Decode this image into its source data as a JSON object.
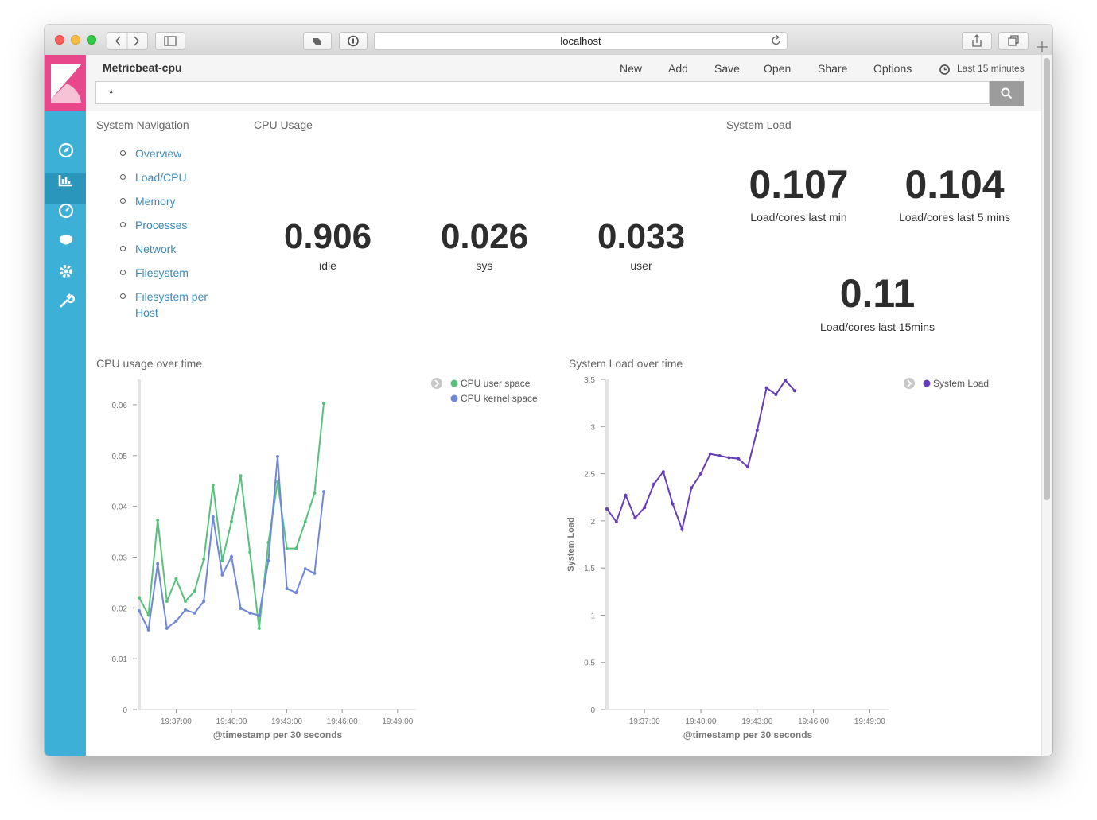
{
  "browser": {
    "url": "localhost"
  },
  "app": {
    "title": "Metricbeat-cpu",
    "menu": [
      "New",
      "Add",
      "Save",
      "Open",
      "Share",
      "Options"
    ],
    "time_range": "Last 15 minutes",
    "query": "*"
  },
  "navigation": {
    "title": "System Navigation",
    "links": [
      "Overview",
      "Load/CPU",
      "Memory",
      "Processes",
      "Network",
      "Filesystem",
      "Filesystem per Host"
    ]
  },
  "cpu_usage": {
    "title": "CPU Usage",
    "metrics": [
      {
        "value": 0.906,
        "label": "idle"
      },
      {
        "value": 0.026,
        "label": "sys"
      },
      {
        "value": 0.033,
        "label": "user"
      }
    ]
  },
  "system_load": {
    "title": "System Load",
    "metrics": [
      {
        "value": 0.107,
        "label": "Load/cores last min"
      },
      {
        "value": 0.104,
        "label": "Load/cores last 5 mins"
      },
      {
        "value": 0.11,
        "label": "Load/cores last 15mins"
      }
    ]
  },
  "chart_data": [
    {
      "type": "line",
      "title": "CPU usage over time",
      "xlabel": "@timestamp per 30 seconds",
      "legend": "right",
      "x": [
        "19:35:00",
        "19:35:30",
        "19:36:00",
        "19:36:30",
        "19:37:00",
        "19:37:30",
        "19:38:00",
        "19:38:30",
        "19:39:00",
        "19:39:30",
        "19:40:00",
        "19:40:30",
        "19:41:00",
        "19:41:30",
        "19:42:00",
        "19:42:30",
        "19:43:00",
        "19:43:30",
        "19:44:00",
        "19:44:30",
        "19:45:00"
      ],
      "series": [
        {
          "name": "CPU user space",
          "color": "#57c17b",
          "values": [
            0.022,
            0.0186,
            0.0373,
            0.0213,
            0.0257,
            0.0213,
            0.0233,
            0.0296,
            0.0442,
            0.0293,
            0.037,
            0.046,
            0.031,
            0.016,
            0.0329,
            0.0448,
            0.0317,
            0.0317,
            0.037,
            0.0426,
            0.0603
          ]
        },
        {
          "name": "CPU kernel space",
          "color": "#6f87d8",
          "values": [
            0.0194,
            0.0157,
            0.0287,
            0.016,
            0.0174,
            0.0196,
            0.019,
            0.0213,
            0.0379,
            0.0265,
            0.0301,
            0.0199,
            0.019,
            0.0185,
            0.0293,
            0.0498,
            0.0238,
            0.023,
            0.0277,
            0.0268,
            0.0429
          ]
        }
      ],
      "xlim": [
        "19:35:00",
        "19:50:00"
      ],
      "xticks": [
        "19:37:00",
        "19:40:00",
        "19:43:00",
        "19:46:00",
        "19:49:00"
      ],
      "ylim": [
        0,
        0.065
      ],
      "yticks": [
        0,
        0.01,
        0.02,
        0.03,
        0.04,
        0.05,
        0.06
      ]
    },
    {
      "type": "line",
      "title": "System Load over time",
      "xlabel": "@timestamp per 30 seconds",
      "ylabel": "System Load",
      "legend": "right",
      "x": [
        "19:35:00",
        "19:35:30",
        "19:36:00",
        "19:36:30",
        "19:37:00",
        "19:37:30",
        "19:38:00",
        "19:38:30",
        "19:39:00",
        "19:39:30",
        "19:40:00",
        "19:40:30",
        "19:41:00",
        "19:41:30",
        "19:42:00",
        "19:42:30",
        "19:43:00",
        "19:43:30",
        "19:44:00",
        "19:44:30",
        "19:45:00"
      ],
      "series": [
        {
          "name": "System Load",
          "color": "#663db8",
          "values": [
            2.125,
            1.99,
            2.27,
            2.03,
            2.14,
            2.39,
            2.52,
            2.18,
            1.91,
            2.35,
            2.5,
            2.71,
            2.69,
            2.67,
            2.66,
            2.57,
            2.96,
            3.41,
            3.34,
            3.49,
            3.38
          ]
        }
      ],
      "xlim": [
        "19:35:00",
        "19:50:00"
      ],
      "xticks": [
        "19:37:00",
        "19:40:00",
        "19:43:00",
        "19:46:00",
        "19:49:00"
      ],
      "ylim": [
        0,
        3.5
      ],
      "yticks": [
        0,
        0.5,
        1,
        1.5,
        2,
        2.5,
        3,
        3.5
      ]
    }
  ]
}
